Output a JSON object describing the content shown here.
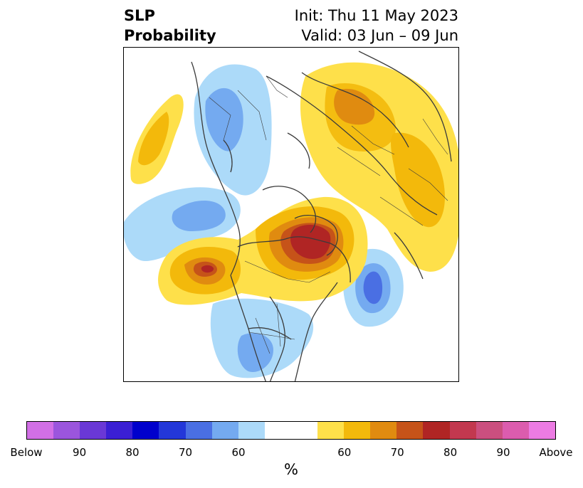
{
  "title": {
    "left_line1": "SLP",
    "left_line2": "Probability",
    "right_line1": "Init: Thu 11 May 2023",
    "right_line2": "Valid: 03 Jun – 09 Jun"
  },
  "colorbar": {
    "colors": [
      "#d26fe6",
      "#9b55dd",
      "#6a38d6",
      "#3b1fd4",
      "#0000cc",
      "#2337d9",
      "#4a6fe3",
      "#74aaf0",
      "#acdaf9",
      "#ffffff",
      "#ffffff",
      "#fee04a",
      "#f3b90b",
      "#e08b10",
      "#c65319",
      "#b02524",
      "#c2384f",
      "#cb4f7f",
      "#dc5cae",
      "#ec7be3"
    ],
    "tick_labels": [
      "Below",
      "90",
      "80",
      "70",
      "60",
      "60",
      "70",
      "80",
      "90",
      "Above"
    ],
    "unit": "%"
  },
  "map": {
    "region": "Northern Hemisphere polar projection",
    "features": [
      "coastlines",
      "country borders",
      "state borders"
    ]
  }
}
